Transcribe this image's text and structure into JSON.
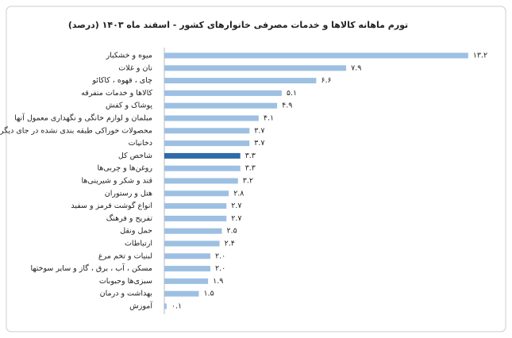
{
  "chart_data": {
    "type": "hbar",
    "title": "تورم ماهانه کالاها و خدمات مصرفی خانوارهای کشور - اسفند ماه ۱۴۰۳ (درصد)",
    "categories": [
      "میوه و خشکبار",
      "نان و غلات",
      "چای ، قهوه ، کاکائو",
      "کالاها و خدمات متفرقه",
      "پوشاک و کفش",
      "مبلمان و لوازم خانگی و نگهداری معمول آنها",
      "محصولات خوراکی طبقه بندی نشده در جای دیگر",
      "دخانیات",
      "شاخص کل",
      "روغن‌ها و چربی‌ها",
      "قند و شکر و شیرینی‌ها",
      "هتل و رستوران",
      "انواع گوشت قرمز و سفید",
      "تفریح و فرهنگ",
      "حمل ونقل",
      "ارتباطات",
      "لبنیات و تخم مرغ",
      "مسکن ، آب ، برق ، گاز و سایر سوختها",
      "سبزی‌ها وحبوبات",
      "بهداشت و درمان",
      "آموزش"
    ],
    "values": [
      13.2,
      7.9,
      6.6,
      5.1,
      4.9,
      4.1,
      3.7,
      3.7,
      3.3,
      3.3,
      3.2,
      2.8,
      2.7,
      2.7,
      2.5,
      2.4,
      2.0,
      2.0,
      1.9,
      1.5,
      0.1
    ],
    "value_labels": [
      "۱۳.۲",
      "۷.۹",
      "۶.۶",
      "۵.۱",
      "۴.۹",
      "۴.۱",
      "۳.۷",
      "۳.۷",
      "۳.۳",
      "۳.۳",
      "۳.۲",
      "۲.۸",
      "۲.۷",
      "۲.۷",
      "۲.۵",
      "۲.۴",
      "۲.۰",
      "۲.۰",
      "۱.۹",
      "۱.۵",
      "۰.۱"
    ],
    "colors": [
      "#9dc0e2",
      "#9dc0e2",
      "#9dc0e2",
      "#9dc0e2",
      "#9dc0e2",
      "#9dc0e2",
      "#9dc0e2",
      "#9dc0e2",
      "#2e6aa6",
      "#9dc0e2",
      "#9dc0e2",
      "#9dc0e2",
      "#9dc0e2",
      "#9dc0e2",
      "#9dc0e2",
      "#9dc0e2",
      "#9dc0e2",
      "#9dc0e2",
      "#9dc0e2",
      "#9dc0e2",
      "#9dc0e2"
    ],
    "xlim": [
      0,
      14
    ]
  }
}
